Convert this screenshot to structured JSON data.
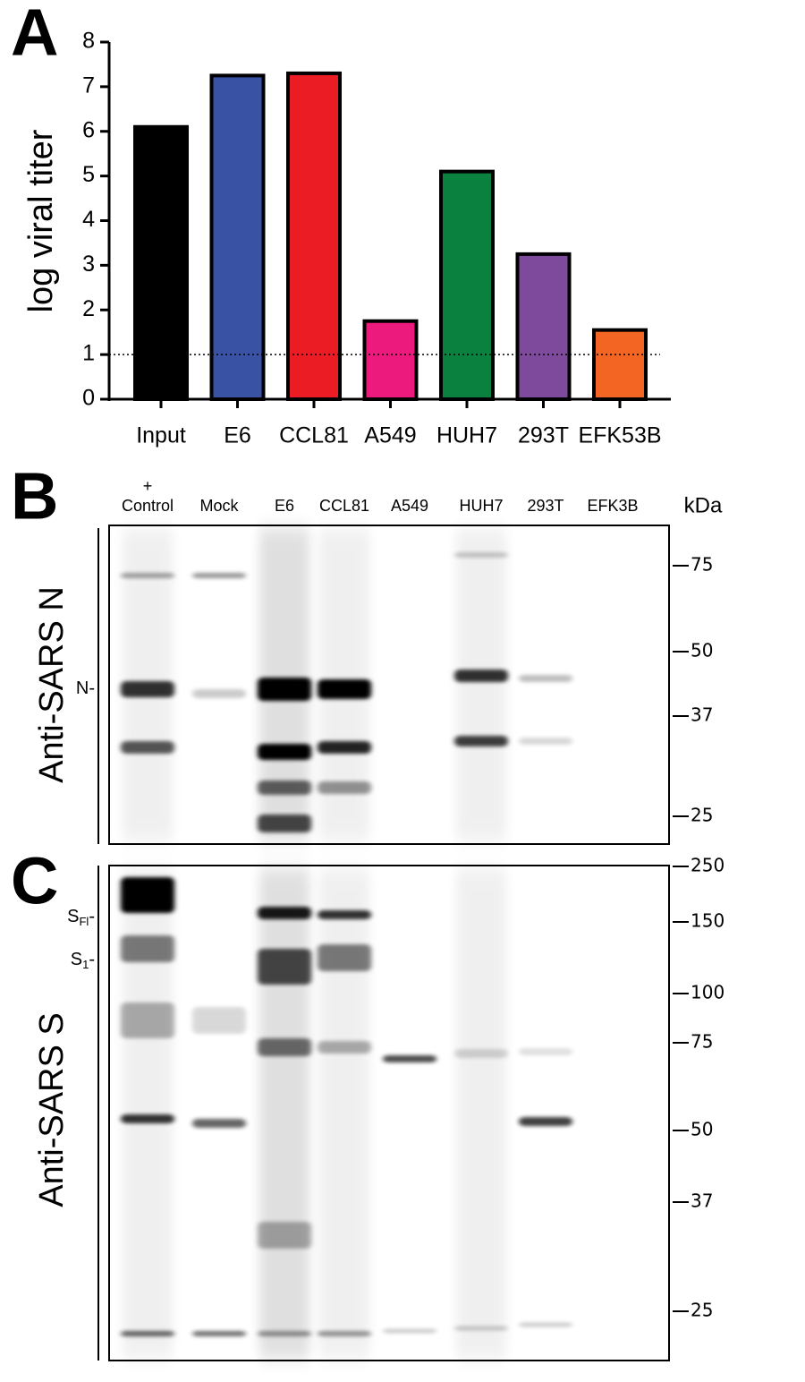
{
  "chart_data": {
    "type": "bar",
    "panel": "A",
    "y_label": "log viral titer",
    "categories": [
      "Input",
      "E6",
      "CCL81",
      "A549",
      "HUH7",
      "293T",
      "EFK53B"
    ],
    "values": [
      6.1,
      7.25,
      7.3,
      1.75,
      5.1,
      3.25,
      1.55
    ],
    "colors": [
      "#000000",
      "#3a52a4",
      "#ec1c24",
      "#ec1a7d",
      "#0b8140",
      "#7e4a9c",
      "#f26522"
    ],
    "ylim": [
      0,
      8
    ],
    "yticks": [
      0,
      1,
      2,
      3,
      4,
      5,
      6,
      7,
      8
    ],
    "threshold": 1,
    "grid": false
  },
  "blots": {
    "lane_prefix": "+",
    "lanes": [
      "Control",
      "Mock",
      "E6",
      "CCL81",
      "A549",
      "HUH7",
      "293T",
      "EFK3B"
    ],
    "unit": "kDa",
    "B": {
      "panel": "B",
      "y_label": "Anti-SARS N",
      "markers": [
        75,
        50,
        37,
        25
      ],
      "bands": [
        {
          "main": "N",
          "sub": "",
          "suffix": "-"
        }
      ]
    },
    "C": {
      "panel": "C",
      "y_label": "Anti-SARS S",
      "markers": [
        250,
        150,
        100,
        75,
        50,
        37,
        25
      ],
      "bands": [
        {
          "main": "S",
          "sub": "Fl",
          "suffix": "-"
        },
        {
          "main": "S",
          "sub": "1",
          "suffix": "-"
        }
      ]
    }
  }
}
